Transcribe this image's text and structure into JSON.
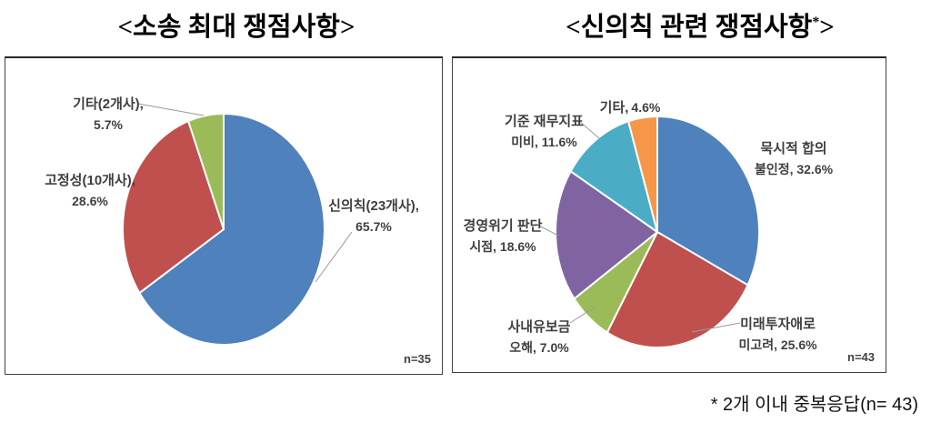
{
  "footnote": "* 2개 이내 중복응답(n= 43)",
  "palette": {
    "blue": "#4F81BD",
    "red": "#C0504D",
    "green": "#9BBB59",
    "purple": "#8064A2",
    "teal": "#4BACC6",
    "orange": "#F79646",
    "leader_line": "#9a9a9a",
    "panel_border": "#404040"
  },
  "chart_data": [
    {
      "type": "pie",
      "title": "<소송 최대 쟁점사항>",
      "title_pre": "<소송 최대 쟁점사항>",
      "title_sup": "",
      "title_post": "",
      "n": 35,
      "n_label": "n=35",
      "start_angle_deg": 0,
      "direction": "clockwise",
      "slices": [
        {
          "label": "신의칙(23개사)",
          "value": 65.7,
          "color": "#4F81BD",
          "label_line1": "신의칙(23개사),",
          "label_line2": "65.7%"
        },
        {
          "label": "고정성(10개사)",
          "value": 28.6,
          "color": "#C0504D",
          "label_line1": "고정성(10개사),",
          "label_line2": "28.6%"
        },
        {
          "label": "기타(2개사)",
          "value": 5.7,
          "color": "#9BBB59",
          "label_line1": "기타(2개사),",
          "label_line2": "5.7%"
        }
      ]
    },
    {
      "type": "pie",
      "title": "<신의칙 관련 쟁점사항*>",
      "title_pre": "<신의칙 관련 쟁점사항",
      "title_sup": "*",
      "title_post": ">",
      "n": 43,
      "n_label": "n=43",
      "start_angle_deg": 0,
      "direction": "clockwise",
      "slices": [
        {
          "label": "묵시적 합의 불인정",
          "value": 32.6,
          "color": "#4F81BD",
          "label_line1": "묵시적 합의",
          "label_line2": "불인정, 32.6%"
        },
        {
          "label": "미래투자애로 미고려",
          "value": 25.6,
          "color": "#C0504D",
          "label_line1": "미래투자애로",
          "label_line2": "미고려, 25.6%"
        },
        {
          "label": "사내유보금 오해",
          "value": 7.0,
          "color": "#9BBB59",
          "label_line1": "사내유보금",
          "label_line2": "오해, 7.0%"
        },
        {
          "label": "경영위기 판단 시점",
          "value": 18.6,
          "color": "#8064A2",
          "label_line1": "경영위기 판단",
          "label_line2": "시점, 18.6%"
        },
        {
          "label": "기준 재무지표 미비",
          "value": 11.6,
          "color": "#4BACC6",
          "label_line1": "기준 재무지표",
          "label_line2": "미비, 11.6%"
        },
        {
          "label": "기타",
          "value": 4.6,
          "color": "#F79646",
          "label_line1": "기타,",
          "label_line2": "4.6%"
        }
      ]
    }
  ]
}
